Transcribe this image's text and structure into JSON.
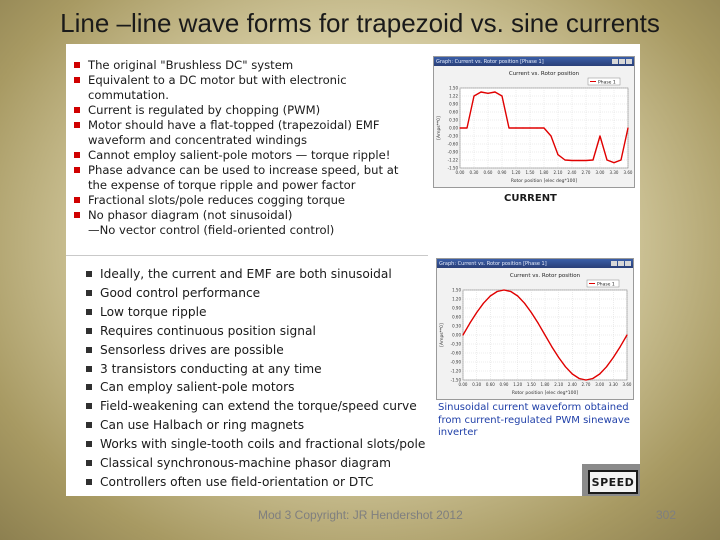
{
  "title": "Line –line wave forms for trapezoid vs. sine currents",
  "top_bullets": [
    "The original \"Brushless DC\" system",
    "Equivalent to a DC motor but with electronic commutation.",
    "Current is regulated by chopping (PWM)",
    "Motor should have a flat-topped (trapezoidal) EMF waveform and concentrated windings",
    "Cannot employ salient-pole motors — torque ripple!",
    "Phase advance can be used to increase speed, but at the expense of torque ripple and power factor",
    "Fractional slots/pole reduces cogging torque",
    "No phasor diagram (not sinusoidal)"
  ],
  "top_sub_bullet": "—No vector control (field-oriented control)",
  "bottom_bullets": [
    "Ideally, the current and EMF are both sinusoidal",
    "Good control performance",
    "Low torque ripple",
    "Requires continuous position signal",
    "Sensorless drives are possible",
    "3 transistors conducting at any time",
    "Can employ salient-pole motors",
    "Field-weakening can extend the torque/speed curve",
    "Can use Halbach or ring magnets",
    "Works with single-tooth coils and fractional slots/pole",
    "Classical synchronous-machine phasor diagram",
    "Controllers often use field-orientation or DTC"
  ],
  "plot1": {
    "window_title": "Graph: Current vs. Rotor position [Phase 1]",
    "title": "Current vs. Rotor position",
    "legend": "Phase 1",
    "ylabel": "[Amps**0]",
    "xlabel": "Rotor position [elec deg*100]",
    "caption": "CURRENT",
    "accent": "#e00000"
  },
  "plot2": {
    "window_title": "Graph: Current vs. Rotor position [Phase 1]",
    "title": "Current vs. Rotor position",
    "legend": "Phase 1",
    "ylabel": "[Amps**0]",
    "xlabel": "Rotor position [elec deg*100]",
    "caption": "Sinusoidal current waveform obtained from current-regulated PWM sinewave inverter",
    "caption_color": "#1f3fa8",
    "accent": "#e00000"
  },
  "logo_text": "SPEED",
  "footer": "Mod 3 Copyright: JR Hendershot 2012",
  "page_number": "302",
  "chart_data": [
    {
      "type": "line",
      "title": "Current vs. Rotor position",
      "xlabel": "Rotor position [elec deg*100]",
      "ylabel": "[Amps**0]",
      "x_ticks": [
        "0.00",
        "0.30",
        "0.60",
        "0.90",
        "1.20",
        "1.50",
        "1.80",
        "2.10",
        "2.40",
        "2.70",
        "3.00",
        "3.30",
        "3.60"
      ],
      "y_ticks": [
        "1.50",
        "1.22",
        "0.90",
        "0.60",
        "0.30",
        "0.00",
        "-0.30",
        "-0.60",
        "-0.90",
        "-1.22",
        "-1.50"
      ],
      "xlim": [
        0.0,
        3.6
      ],
      "ylim": [
        -1.5,
        1.5
      ],
      "series": [
        {
          "name": "Phase 1",
          "x": [
            0.0,
            0.15,
            0.3,
            0.45,
            0.6,
            0.75,
            0.9,
            1.05,
            1.2,
            1.35,
            1.5,
            1.65,
            1.8,
            1.95,
            2.1,
            2.25,
            2.4,
            2.55,
            2.7,
            2.85,
            3.0,
            3.15,
            3.3,
            3.45,
            3.6
          ],
          "y": [
            0.0,
            0.0,
            1.2,
            1.35,
            1.3,
            1.35,
            1.2,
            0.0,
            0.0,
            0.0,
            0.0,
            0.0,
            0.0,
            -0.3,
            -1.0,
            -1.2,
            -1.22,
            -1.22,
            -1.22,
            -1.2,
            -0.3,
            -1.2,
            -1.3,
            -1.2,
            0.0
          ]
        }
      ]
    },
    {
      "type": "line",
      "title": "Current vs. Rotor position",
      "xlabel": "Rotor position [elec deg*100]",
      "ylabel": "[Amps**0]",
      "x_ticks": [
        "0.00",
        "0.30",
        "0.60",
        "0.90",
        "1.20",
        "1.50",
        "1.80",
        "2.10",
        "2.40",
        "2.70",
        "3.00",
        "3.30",
        "3.60"
      ],
      "y_ticks": [
        "1.50",
        "1.20",
        "0.90",
        "0.60",
        "0.30",
        "0.00",
        "-0.30",
        "-0.60",
        "-0.90",
        "-1.20",
        "-1.50"
      ],
      "xlim": [
        0.0,
        3.6
      ],
      "ylim": [
        -1.5,
        1.5
      ],
      "series": [
        {
          "name": "Phase 1",
          "x": [
            0.0,
            0.15,
            0.3,
            0.45,
            0.6,
            0.75,
            0.9,
            1.05,
            1.2,
            1.35,
            1.5,
            1.65,
            1.8,
            1.95,
            2.1,
            2.25,
            2.4,
            2.55,
            2.7,
            2.85,
            3.0,
            3.15,
            3.3,
            3.45,
            3.6
          ],
          "y": [
            0.0,
            0.39,
            0.75,
            1.06,
            1.3,
            1.45,
            1.5,
            1.45,
            1.3,
            1.06,
            0.75,
            0.39,
            0.0,
            -0.39,
            -0.75,
            -1.06,
            -1.3,
            -1.45,
            -1.5,
            -1.45,
            -1.3,
            -1.06,
            -0.75,
            -0.39,
            0.0
          ]
        }
      ]
    }
  ]
}
